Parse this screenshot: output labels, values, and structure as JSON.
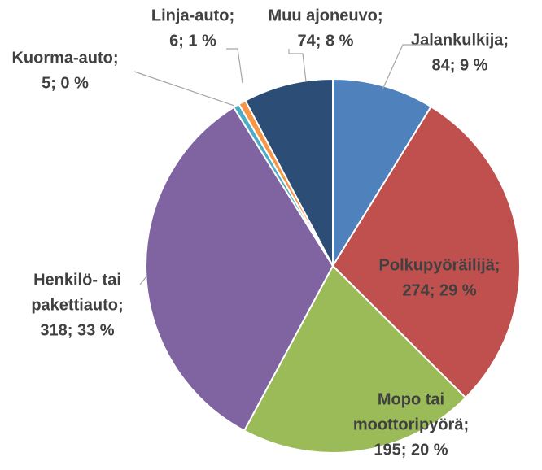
{
  "chart_data": {
    "type": "pie",
    "categories": [
      [
        "Jalankulkija;"
      ],
      [
        "Polkupyöräilijä;"
      ],
      [
        "Mopo tai",
        "moottoripyörä;"
      ],
      [
        "Henkilö- tai",
        "pakettiauto;"
      ],
      [
        "Kuorma-auto;"
      ],
      [
        "Linja-auto;"
      ],
      [
        "Muu ajoneuvo;"
      ]
    ],
    "values": [
      84,
      274,
      195,
      318,
      5,
      6,
      74
    ],
    "value_labels": [
      "84; 9 %",
      "274; 29 %",
      "195; 20 %",
      "318; 33 %",
      "5; 0 %",
      "6; 1 %",
      "74; 8 %"
    ],
    "colors": [
      "#4f81bd",
      "#c0504d",
      "#9bbb59",
      "#8064a2",
      "#4bacc6",
      "#f79646",
      "#2c4d75"
    ]
  }
}
